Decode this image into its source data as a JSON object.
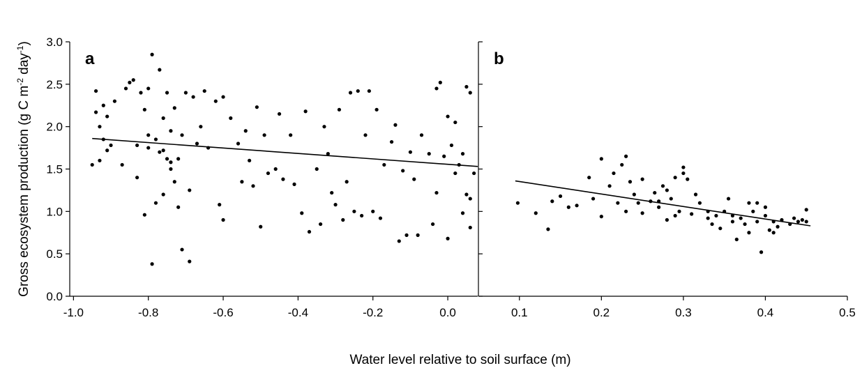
{
  "chart_data": [
    {
      "type": "scatter",
      "panel_label": "a",
      "ylabel_parts": [
        "Gross ecosystem production (g C m",
        "-2",
        " day",
        "-1",
        ")"
      ],
      "xlabel": "Water level relative to soil surface (m)",
      "xlim": [
        -1.01,
        0.08
      ],
      "xticks": [
        {
          "value": -1.0,
          "label": "-1.0"
        },
        -0.8,
        -0.6,
        -0.4,
        -0.2,
        {
          "value": 0.0,
          "label": "0.0"
        }
      ],
      "ylim": [
        0,
        3
      ],
      "yticks": [
        {
          "value": 0,
          "label": "0.0"
        },
        0.5,
        {
          "value": 1,
          "label": "1.0"
        },
        1.5,
        {
          "value": 2,
          "label": "2.0"
        },
        2.5,
        {
          "value": 3,
          "label": "3.0"
        }
      ],
      "show_ytick_labels": true,
      "color": "#000000",
      "x": [
        -0.95,
        -0.94,
        -0.94,
        -0.93,
        -0.93,
        -0.92,
        -0.92,
        -0.91,
        -0.91,
        -0.9,
        -0.89,
        -0.87,
        -0.86,
        -0.85,
        -0.84,
        -0.83,
        -0.82,
        -0.81,
        -0.81,
        -0.8,
        -0.8,
        -0.79,
        -0.79,
        -0.78,
        -0.78,
        -0.77,
        -0.77,
        -0.76,
        -0.76,
        -0.75,
        -0.75,
        -0.74,
        -0.74,
        -0.73,
        -0.73,
        -0.72,
        -0.72,
        -0.71,
        -0.71,
        -0.7,
        -0.69,
        -0.69,
        -0.68,
        -0.67,
        -0.66,
        -0.65,
        -0.64,
        -0.62,
        -0.61,
        -0.6,
        -0.6,
        -0.58,
        -0.56,
        -0.55,
        -0.54,
        -0.53,
        -0.52,
        -0.51,
        -0.5,
        -0.49,
        -0.48,
        -0.46,
        -0.45,
        -0.44,
        -0.42,
        -0.41,
        -0.39,
        -0.38,
        -0.37,
        -0.35,
        -0.34,
        -0.33,
        -0.32,
        -0.31,
        -0.3,
        -0.29,
        -0.28,
        -0.27,
        -0.26,
        -0.25,
        -0.24,
        -0.23,
        -0.22,
        -0.21,
        -0.2,
        -0.19,
        -0.18,
        -0.17,
        -0.15,
        -0.14,
        -0.13,
        -0.12,
        -0.11,
        -0.1,
        -0.09,
        -0.08,
        -0.07,
        -0.05,
        -0.04,
        -0.03,
        -0.03,
        -0.02,
        -0.01,
        0.0,
        0.0,
        0.01,
        0.02,
        0.02,
        0.03,
        0.04,
        0.04,
        0.05,
        0.05,
        0.06,
        0.06,
        0.06,
        0.07,
        -0.74,
        -0.76,
        -0.8,
        -0.83
      ],
      "values": [
        1.55,
        2.17,
        2.42,
        2.0,
        1.6,
        1.85,
        2.25,
        1.72,
        2.12,
        1.78,
        2.3,
        1.55,
        2.45,
        2.52,
        2.55,
        1.78,
        2.4,
        2.2,
        0.96,
        1.9,
        2.45,
        0.38,
        2.85,
        1.85,
        1.1,
        2.67,
        1.7,
        2.1,
        1.2,
        2.4,
        1.62,
        1.95,
        1.5,
        1.35,
        2.22,
        1.05,
        1.62,
        0.55,
        1.9,
        2.4,
        0.41,
        1.25,
        2.35,
        1.8,
        2.0,
        2.42,
        1.75,
        2.3,
        1.08,
        0.9,
        2.35,
        2.1,
        1.8,
        1.35,
        1.95,
        1.6,
        1.3,
        2.23,
        0.82,
        1.9,
        1.45,
        1.5,
        2.15,
        1.38,
        1.9,
        1.32,
        0.98,
        2.18,
        0.76,
        1.5,
        0.85,
        2.0,
        1.68,
        1.22,
        1.08,
        2.2,
        0.9,
        1.35,
        2.4,
        1.0,
        2.42,
        0.95,
        1.9,
        2.42,
        1.0,
        2.2,
        0.92,
        1.55,
        1.82,
        2.02,
        0.65,
        1.48,
        0.72,
        1.7,
        1.38,
        0.72,
        1.9,
        1.68,
        0.85,
        2.45,
        1.22,
        2.52,
        1.65,
        0.68,
        2.12,
        1.78,
        2.05,
        1.45,
        1.55,
        0.98,
        1.68,
        2.47,
        1.2,
        1.15,
        2.4,
        0.81,
        1.45,
        1.58,
        1.72,
        1.75,
        1.4
      ],
      "trend": {
        "x": [
          -0.95,
          0.08
        ],
        "y": [
          1.86,
          1.53
        ]
      }
    },
    {
      "type": "scatter",
      "panel_label": "b",
      "xlim": [
        0.05,
        0.5
      ],
      "xticks": [
        0.1,
        0.2,
        0.3,
        0.4,
        0.5
      ],
      "ylim": [
        0,
        3
      ],
      "yticks": [
        0,
        0.5,
        1,
        1.5,
        2,
        2.5,
        3
      ],
      "show_ytick_labels": false,
      "color": "#000000",
      "x": [
        0.098,
        0.12,
        0.135,
        0.14,
        0.15,
        0.16,
        0.17,
        0.185,
        0.19,
        0.2,
        0.2,
        0.21,
        0.215,
        0.22,
        0.225,
        0.23,
        0.23,
        0.235,
        0.24,
        0.245,
        0.25,
        0.25,
        0.26,
        0.265,
        0.27,
        0.275,
        0.28,
        0.28,
        0.285,
        0.29,
        0.295,
        0.3,
        0.3,
        0.305,
        0.31,
        0.315,
        0.32,
        0.33,
        0.335,
        0.34,
        0.345,
        0.35,
        0.355,
        0.36,
        0.365,
        0.37,
        0.375,
        0.38,
        0.38,
        0.385,
        0.39,
        0.39,
        0.395,
        0.4,
        0.4,
        0.405,
        0.41,
        0.415,
        0.42,
        0.43,
        0.435,
        0.44,
        0.445,
        0.45,
        0.45,
        0.27,
        0.29,
        0.33,
        0.36,
        0.41
      ],
      "values": [
        1.1,
        0.98,
        0.79,
        1.12,
        1.18,
        1.05,
        1.07,
        1.4,
        1.15,
        1.62,
        0.94,
        1.3,
        1.45,
        1.1,
        1.55,
        1.65,
        1.0,
        1.35,
        1.2,
        1.1,
        1.38,
        0.98,
        1.12,
        1.22,
        1.05,
        1.3,
        0.9,
        1.25,
        1.15,
        1.4,
        1.0,
        1.45,
        1.52,
        1.38,
        0.97,
        1.2,
        1.1,
        1.0,
        0.85,
        0.95,
        0.8,
        1.0,
        1.15,
        0.88,
        0.67,
        0.92,
        0.85,
        1.1,
        0.75,
        1.0,
        0.88,
        1.1,
        0.52,
        0.95,
        1.05,
        0.78,
        0.88,
        0.82,
        0.9,
        0.85,
        0.92,
        0.88,
        0.9,
        1.02,
        0.88,
        1.12,
        0.95,
        0.92,
        0.95,
        0.75
      ],
      "trend": {
        "x": [
          0.095,
          0.455
        ],
        "y": [
          1.36,
          0.83
        ]
      }
    }
  ]
}
